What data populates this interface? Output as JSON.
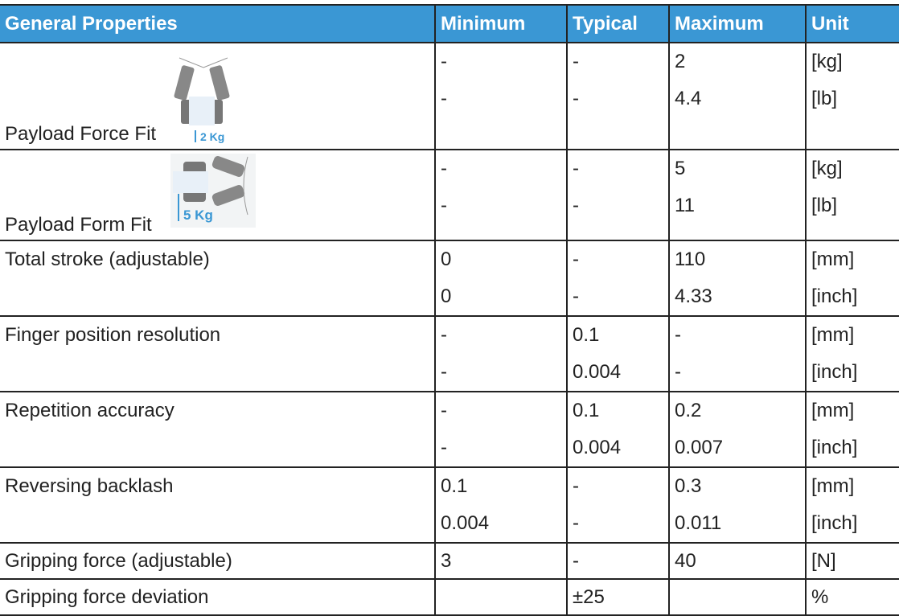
{
  "header": [
    "General Properties",
    "Minimum",
    "Typical",
    "Maximum",
    "Unit"
  ],
  "rows": [
    {
      "label": "Payload Force Fit",
      "image_caption": "2 Kg",
      "min": [
        "-",
        "-"
      ],
      "typ": [
        "-",
        "-"
      ],
      "max": [
        "2",
        "4.4"
      ],
      "unit": [
        "[kg]",
        "[lb]"
      ]
    },
    {
      "label": "Payload Form Fit",
      "image_caption": "5 Kg",
      "min": [
        "-",
        "-"
      ],
      "typ": [
        "-",
        "-"
      ],
      "max": [
        "5",
        "11"
      ],
      "unit": [
        "[kg]",
        "[lb]"
      ]
    },
    {
      "label": "Total stroke (adjustable)",
      "min": [
        "0",
        "0"
      ],
      "typ": [
        "-",
        "-"
      ],
      "max": [
        "110",
        "4.33"
      ],
      "unit": [
        "[mm]",
        "[inch]"
      ]
    },
    {
      "label": "Finger position resolution",
      "min": [
        "-",
        "-"
      ],
      "typ": [
        "0.1",
        "0.004"
      ],
      "max": [
        "-",
        "-"
      ],
      "unit": [
        "[mm]",
        "[inch]"
      ]
    },
    {
      "label": "Repetition accuracy",
      "min": [
        "-",
        "-"
      ],
      "typ": [
        "0.1",
        "0.004"
      ],
      "max": [
        "0.2",
        "0.007"
      ],
      "unit": [
        "[mm]",
        "[inch]"
      ]
    },
    {
      "label": "Reversing backlash",
      "min": [
        "0.1",
        "0.004"
      ],
      "typ": [
        "-",
        "-"
      ],
      "max": [
        "0.3",
        "0.011"
      ],
      "unit": [
        "[mm]",
        "[inch]"
      ]
    },
    {
      "label": "Gripping force (adjustable)",
      "min": [
        "3"
      ],
      "typ": [
        "-"
      ],
      "max": [
        "40"
      ],
      "unit": [
        "[N]"
      ]
    },
    {
      "label": "Gripping force deviation",
      "min": [
        ""
      ],
      "typ": [
        "±25"
      ],
      "max": [
        ""
      ],
      "unit": [
        "%"
      ]
    }
  ],
  "colors": {
    "header_bg": "#3a97d4",
    "accent": "#3a97d4"
  }
}
